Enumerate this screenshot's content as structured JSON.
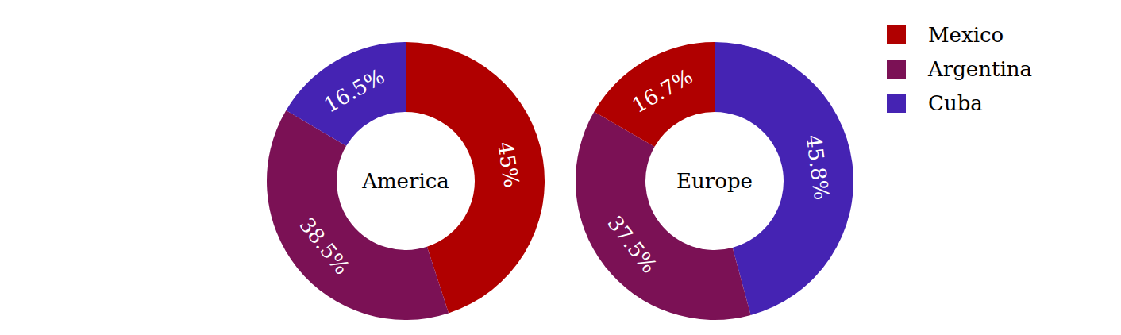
{
  "chart_data": [
    {
      "type": "pie",
      "title": "America",
      "categories": [
        "Mexico",
        "Argentina",
        "Cuba"
      ],
      "values": [
        45,
        38.5,
        16.5
      ],
      "value_labels": [
        "45%",
        "38.5%",
        "16.5%"
      ],
      "colors": [
        "#b00000",
        "#7b1155",
        "#4523b3"
      ],
      "data_labels": true,
      "legend": "upper right"
    },
    {
      "type": "pie",
      "title": "Europe",
      "categories": [
        "Cuba",
        "Argentina",
        "Mexico"
      ],
      "values": [
        45.8,
        37.5,
        16.7
      ],
      "value_labels": [
        "45.8%",
        "37.5%",
        "16.7%"
      ],
      "colors": [
        "#4523b3",
        "#7b1155",
        "#b00000"
      ],
      "data_labels": true
    }
  ]
}
